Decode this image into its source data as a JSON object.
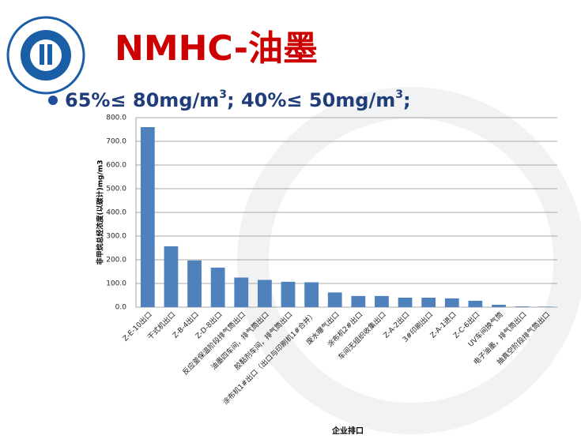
{
  "header": {
    "title": "NMHC-油墨",
    "bullet": [
      "65%≤ 80mg/m",
      "3",
      "; 40%≤ 50mg/m",
      "3",
      ";"
    ]
  },
  "chart_data": {
    "type": "bar",
    "y_label": "非甲烷总烃浓度(以碳计)mg/m3",
    "x_label": "企业排口",
    "categories": [
      "Z-E-10出口",
      "干式机出口",
      "Z-B-4出口",
      "Z-D-8出口",
      "反应釜保温阶段排气筒出口",
      "油墨四车间，排气筒出口",
      "胶黏剂车间，排气筒出口",
      "涂布机1#出口（出口与印刷机1#合并）",
      "废水曝气出口",
      "涂布机2#出口",
      "车间无组织收集出口",
      "Z-A-2出口",
      "3#印刷出口",
      "Z-A-1进口",
      "Z-C-6出口",
      "UV车间换气筒",
      "电子油墨，排气筒出口",
      "抽真空阶段排气筒出口"
    ],
    "values": [
      760,
      257,
      197,
      167,
      125,
      115,
      107,
      105,
      62,
      47,
      47,
      40,
      40,
      37,
      27,
      10,
      3,
      2
    ],
    "color": "#4f81bd",
    "ylim": [
      0,
      800
    ],
    "yticks": [
      {
        "value": 0,
        "label": "0.0"
      },
      {
        "value": 100,
        "label": "100.0"
      },
      {
        "value": 200,
        "label": "200.0"
      },
      {
        "value": 300,
        "label": "300.0"
      },
      {
        "value": 400,
        "label": "400.0"
      },
      {
        "value": 500,
        "label": "500.0"
      },
      {
        "value": 600,
        "label": "600.0"
      },
      {
        "value": 700,
        "label": "700.0"
      },
      {
        "value": 800,
        "label": "800.0"
      }
    ],
    "grid": true
  }
}
